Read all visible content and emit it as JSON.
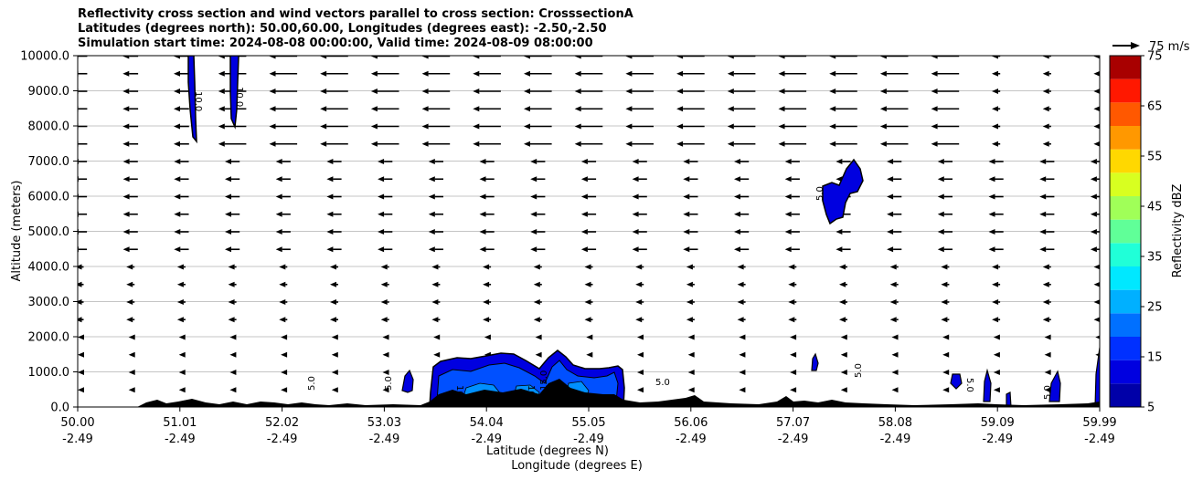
{
  "chart_data": {
    "type": "contour",
    "title_lines": [
      "Reflectivity cross section and wind vectors parallel to cross section: CrosssectionA",
      "Latitudes (degrees north): 50.00,60.00, Longitudes (degrees east): -2.50,-2.50",
      "Simulation start time: 2024-08-08 00:00:00, Valid time: 2024-08-09 08:00:00"
    ],
    "xlabel_1": "Latitude (degrees N)",
    "xlabel_2": "Longitude (degrees E)",
    "ylabel": "Altitude (meters)",
    "x_ticks": [
      {
        "lat": "50.00",
        "lon": "-2.49"
      },
      {
        "lat": "51.01",
        "lon": "-2.49"
      },
      {
        "lat": "52.02",
        "lon": "-2.49"
      },
      {
        "lat": "53.03",
        "lon": "-2.49"
      },
      {
        "lat": "54.04",
        "lon": "-2.49"
      },
      {
        "lat": "55.05",
        "lon": "-2.49"
      },
      {
        "lat": "56.06",
        "lon": "-2.49"
      },
      {
        "lat": "57.07",
        "lon": "-2.49"
      },
      {
        "lat": "58.08",
        "lon": "-2.49"
      },
      {
        "lat": "59.09",
        "lon": "-2.49"
      },
      {
        "lat": "59.99",
        "lon": "-2.49"
      }
    ],
    "xlim": [
      50.0,
      59.99
    ],
    "y_ticks": [
      "0.0",
      "1000.0",
      "2000.0",
      "3000.0",
      "4000.0",
      "5000.0",
      "6000.0",
      "7000.0",
      "8000.0",
      "9000.0",
      "10000.0"
    ],
    "ylim": [
      0,
      10000
    ],
    "grid": "horizontal",
    "colorbar": {
      "label": "Reflectivity dBZ",
      "levels": [
        5,
        10,
        15,
        20,
        25,
        30,
        35,
        40,
        45,
        50,
        55,
        60,
        65,
        70,
        75
      ],
      "tick_labels": [
        "5",
        "15",
        "25",
        "35",
        "45",
        "55",
        "65",
        "75"
      ],
      "colors": [
        "#0000a8",
        "#0000e0",
        "#0030ff",
        "#0070ff",
        "#00b0ff",
        "#00e8ff",
        "#20ffd8",
        "#60ff98",
        "#a0ff58",
        "#d8ff20",
        "#ffd800",
        "#ff9800",
        "#ff5800",
        "#ff1800",
        "#a80000"
      ]
    },
    "wind_key": {
      "label": "75 m/s"
    },
    "contour_labels": [
      "10.0",
      "10.0",
      "5.0",
      "5.0",
      "5.0",
      "5.0",
      "5.0",
      "10.0",
      "5.0",
      "10.0",
      "15.0",
      "5.0"
    ]
  }
}
